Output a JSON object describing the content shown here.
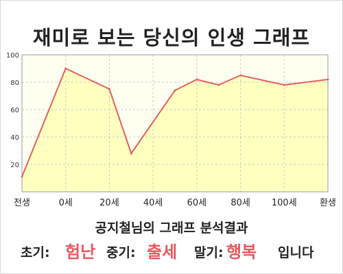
{
  "title": "재미로 보는 당신의 인생 그래프",
  "chart_data": {
    "type": "area",
    "title": "재미로 보는 당신의 인생 그래프",
    "x_tick_labels": [
      "전생",
      "0세",
      "20세",
      "40세",
      "60세",
      "80세",
      "100세",
      "환생"
    ],
    "y_tick_labels": [
      "100",
      "80",
      "60",
      "40",
      "20"
    ],
    "ylim": [
      0,
      100
    ],
    "grid": true,
    "series": [
      {
        "x": [
          -20,
          0,
          20,
          30,
          50,
          60,
          70,
          80,
          100,
          120
        ],
        "y": [
          11,
          90,
          75,
          28,
          74,
          82,
          78,
          85,
          78,
          82
        ]
      }
    ],
    "colors": {
      "line": "#e06060",
      "fill": "#ffffc0",
      "plot_bg": "#fffff0",
      "grid": "#c8c8c8"
    }
  },
  "summary": {
    "heading": "공지철님의 그래프 분석결과",
    "early_label": "초기:",
    "early_value": "험난",
    "middle_label": "중기:",
    "middle_value": "출세",
    "late_label": "말기:",
    "late_value": "행복",
    "ending": "입니다"
  }
}
